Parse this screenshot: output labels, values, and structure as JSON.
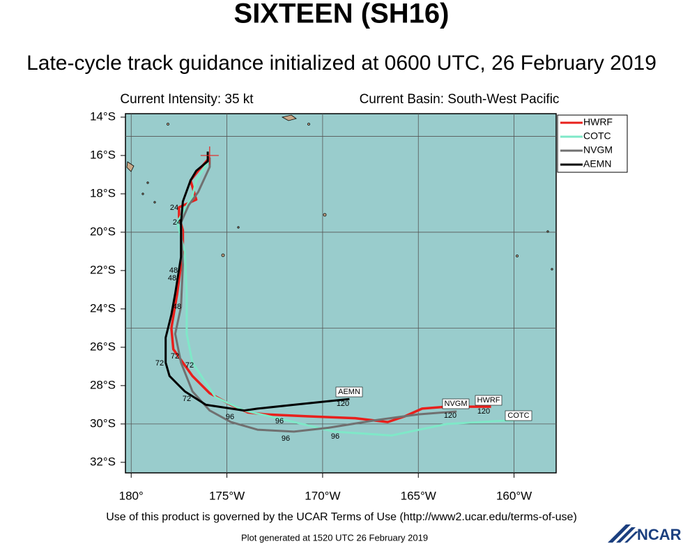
{
  "chart_data": {
    "type": "track-map",
    "title": "SIXTEEN (SH16)",
    "subtitle": "Late-cycle track guidance initialized at 0600 UTC, 26 February 2019",
    "intensity": "Current Intensity: 35 kt",
    "basin": "Current Basin: South-West Pacific",
    "footer": "Use of this product is governed by the UCAR Terms of Use (http://www2.ucar.edu/terms-of-use)",
    "generated": "Plot generated at 1520 UTC  26 February 2019",
    "logo": "NCAR",
    "xlim": [
      179.7,
      202.2
    ],
    "ylim": [
      -32.55,
      -13.82
    ],
    "xticks": [
      {
        "value": 180,
        "label": "180°"
      },
      {
        "value": 185,
        "label": "175°W"
      },
      {
        "value": 190,
        "label": "170°W"
      },
      {
        "value": 195,
        "label": "165°W"
      },
      {
        "value": 200,
        "label": "160°W"
      }
    ],
    "yticks": [
      {
        "value": -14,
        "label": "14°S"
      },
      {
        "value": -16,
        "label": "16°S"
      },
      {
        "value": -18,
        "label": "18°S"
      },
      {
        "value": -20,
        "label": "20°S"
      },
      {
        "value": -22,
        "label": "22°S"
      },
      {
        "value": -24,
        "label": "24°S"
      },
      {
        "value": -26,
        "label": "26°S"
      },
      {
        "value": -28,
        "label": "28°S"
      },
      {
        "value": -30,
        "label": "30°S"
      },
      {
        "value": -32,
        "label": "32°S"
      }
    ],
    "grid_x": [
      180,
      185,
      190,
      195,
      200
    ],
    "grid_y": [
      -15,
      -20,
      -25,
      -30
    ],
    "current_position": [
      184.1,
      -16.0
    ],
    "series": [
      {
        "name": "HWRF",
        "color": "#e8201c",
        "x": [
          184.1,
          183.5,
          183.1,
          183.4,
          182.5,
          182.5,
          182.7,
          182.7,
          182.4,
          182.1,
          182.2,
          182.7,
          183.2,
          184.1,
          185.2,
          186.1,
          187.0,
          189.2,
          191.7,
          193.4,
          194.3,
          195.2,
          196.5,
          198.8
        ],
        "values": [
          -16.1,
          -16.8,
          -17.3,
          -18.3,
          -18.7,
          -19.2,
          -19.9,
          -21.0,
          -23.2,
          -25.0,
          -26.1,
          -26.8,
          -27.5,
          -28.4,
          -29.0,
          -29.4,
          -29.5,
          -29.6,
          -29.7,
          -29.9,
          -29.6,
          -29.2,
          -29.1,
          -29.1
        ]
      },
      {
        "name": "COTC",
        "color": "#7fe8c8",
        "x": [
          184.1,
          183.4,
          183.2,
          182.4,
          182.8,
          182.9,
          182.9,
          183.2,
          184.4,
          185.9,
          188.5,
          190.6,
          193.6,
          196.5,
          200.0
        ],
        "values": [
          -16.2,
          -17.3,
          -18.1,
          -19.5,
          -21.0,
          -23.2,
          -25.3,
          -26.8,
          -28.6,
          -29.3,
          -29.9,
          -30.4,
          -30.6,
          -30.0,
          -29.8
        ]
      },
      {
        "name": "NVGM",
        "color": "#707070",
        "x": [
          184.1,
          184.1,
          183.5,
          183.0,
          182.6,
          182.7,
          182.6,
          182.3,
          182.6,
          183.2,
          184.1,
          185.2,
          186.6,
          188.5,
          190.3,
          192.8,
          195.0,
          197.0
        ],
        "values": [
          -16.1,
          -16.6,
          -17.9,
          -18.6,
          -19.5,
          -21.7,
          -23.9,
          -25.3,
          -26.8,
          -28.3,
          -29.3,
          -29.9,
          -30.3,
          -30.4,
          -30.2,
          -29.8,
          -29.5,
          -29.35
        ]
      },
      {
        "name": "AEMN",
        "color": "#000000",
        "x": [
          184.0,
          184.0,
          183.4,
          183.1,
          182.7,
          182.6,
          182.6,
          182.3,
          182.1,
          181.8,
          181.8,
          182.0,
          182.8,
          183.9,
          185.9,
          186.6,
          188.5,
          191.4
        ],
        "values": [
          -15.8,
          -16.3,
          -16.8,
          -17.3,
          -18.4,
          -19.5,
          -21.3,
          -23.2,
          -24.3,
          -25.5,
          -26.8,
          -27.5,
          -28.3,
          -29.0,
          -29.3,
          -29.2,
          -29.0,
          -28.7
        ]
      }
    ],
    "hour_labels": [
      "24",
      "24",
      "48",
      "48",
      "48",
      "72",
      "72",
      "72",
      "72",
      "96",
      "96",
      "96",
      "96",
      "120",
      "120",
      "120"
    ]
  }
}
